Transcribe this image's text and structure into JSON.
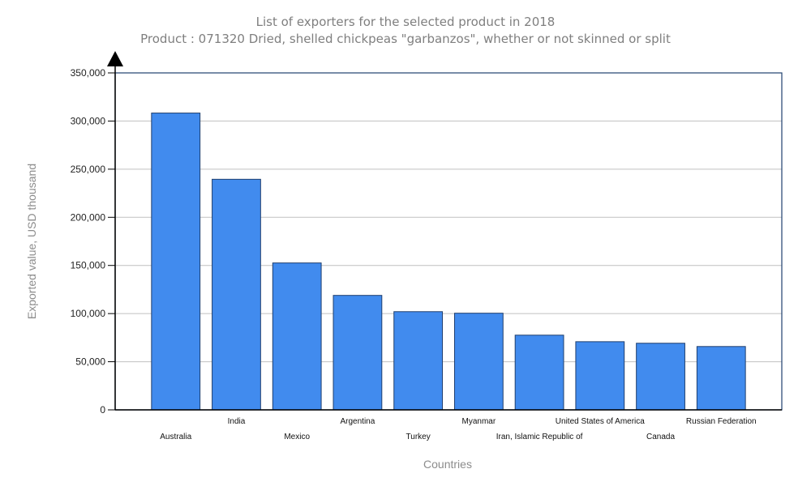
{
  "chart_data": {
    "type": "bar",
    "title": "List of exporters for the selected product in 2018",
    "subtitle": "Product : 071320 Dried, shelled chickpeas \"garbanzos\", whether or not skinned or split",
    "xlabel": "Countries",
    "ylabel": "Exported value, USD thousand",
    "ylim": [
      0,
      350000
    ],
    "yticks": [
      0,
      50000,
      100000,
      150000,
      200000,
      250000,
      300000,
      350000
    ],
    "ytick_labels": [
      "0",
      "50,000",
      "100,000",
      "150,000",
      "200,000",
      "250,000",
      "300,000",
      "350,000"
    ],
    "grid": true,
    "categories": [
      "Australia",
      "India",
      "Mexico",
      "Argentina",
      "Turkey",
      "Myanmar",
      "Iran, Islamic Republic of",
      "United States of America",
      "Canada",
      "Russian Federation"
    ],
    "values": [
      308300,
      239500,
      152600,
      118900,
      102000,
      100400,
      77600,
      70800,
      69200,
      65800
    ],
    "colors": {
      "bar_fill": "#418bee",
      "bar_stroke": "#1f3f6e",
      "frame": "#1f3f6e",
      "grid": "#c0c0c0",
      "axis": "#000000",
      "title": "#7f7f7f",
      "axis_title": "#8c8c8c"
    }
  }
}
